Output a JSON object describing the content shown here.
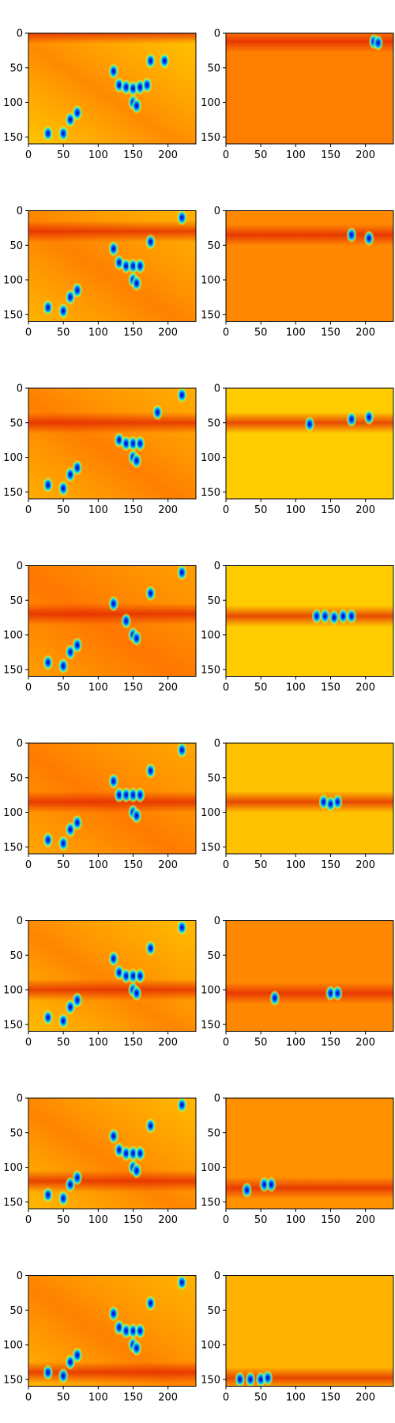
{
  "chart_data": {
    "type": "heatmap",
    "layout": "8 rows x 2 columns of image panels",
    "colormap": "jet",
    "x_ticks": [
      0,
      50,
      100,
      150,
      200
    ],
    "y_ticks": [
      0,
      50,
      100,
      150
    ],
    "xlim": [
      0,
      240
    ],
    "ylim": [
      160,
      0
    ],
    "panels": [
      {
        "row": 1,
        "col": 1,
        "background": "#ffc400",
        "focus_y": 0,
        "blobs": [
          [
            28,
            145
          ],
          [
            50,
            145
          ],
          [
            60,
            125
          ],
          [
            70,
            115
          ],
          [
            122,
            55
          ],
          [
            130,
            75
          ],
          [
            140,
            78
          ],
          [
            150,
            80
          ],
          [
            160,
            78
          ],
          [
            170,
            75
          ],
          [
            150,
            100
          ],
          [
            155,
            105
          ],
          [
            175,
            40
          ],
          [
            195,
            40
          ]
        ]
      },
      {
        "row": 1,
        "col": 2,
        "background": "#ff7f00",
        "focus_y": 12,
        "blobs": [
          [
            212,
            12
          ],
          [
            218,
            14
          ]
        ]
      },
      {
        "row": 2,
        "col": 1,
        "background": "#ffb300",
        "focus_y": 30,
        "blobs": [
          [
            28,
            140
          ],
          [
            50,
            145
          ],
          [
            60,
            125
          ],
          [
            70,
            115
          ],
          [
            122,
            55
          ],
          [
            130,
            75
          ],
          [
            140,
            80
          ],
          [
            150,
            80
          ],
          [
            160,
            80
          ],
          [
            150,
            100
          ],
          [
            155,
            105
          ],
          [
            175,
            45
          ],
          [
            220,
            10
          ]
        ]
      },
      {
        "row": 2,
        "col": 2,
        "background": "#ff8800",
        "focus_y": 35,
        "blobs": [
          [
            180,
            35
          ],
          [
            205,
            40
          ]
        ]
      },
      {
        "row": 3,
        "col": 1,
        "background": "#ffae00",
        "focus_y": 50,
        "blobs": [
          [
            28,
            140
          ],
          [
            50,
            145
          ],
          [
            60,
            125
          ],
          [
            70,
            115
          ],
          [
            130,
            75
          ],
          [
            140,
            80
          ],
          [
            150,
            80
          ],
          [
            160,
            80
          ],
          [
            150,
            100
          ],
          [
            155,
            105
          ],
          [
            185,
            35
          ],
          [
            220,
            10
          ]
        ]
      },
      {
        "row": 3,
        "col": 2,
        "background": "#ffcc00",
        "focus_y": 50,
        "blobs": [
          [
            120,
            52
          ],
          [
            180,
            45
          ],
          [
            205,
            42
          ]
        ]
      },
      {
        "row": 4,
        "col": 1,
        "background": "#ff9d00",
        "focus_y": 70,
        "blobs": [
          [
            28,
            140
          ],
          [
            50,
            145
          ],
          [
            60,
            125
          ],
          [
            70,
            115
          ],
          [
            122,
            55
          ],
          [
            140,
            80
          ],
          [
            150,
            100
          ],
          [
            155,
            105
          ],
          [
            175,
            40
          ],
          [
            220,
            10
          ]
        ]
      },
      {
        "row": 4,
        "col": 2,
        "background": "#ffcc00",
        "focus_y": 73,
        "blobs": [
          [
            130,
            73
          ],
          [
            142,
            73
          ],
          [
            155,
            75
          ],
          [
            168,
            73
          ],
          [
            180,
            73
          ]
        ]
      },
      {
        "row": 5,
        "col": 1,
        "background": "#ffa600",
        "focus_y": 85,
        "blobs": [
          [
            28,
            140
          ],
          [
            50,
            145
          ],
          [
            60,
            125
          ],
          [
            70,
            115
          ],
          [
            122,
            55
          ],
          [
            130,
            75
          ],
          [
            140,
            75
          ],
          [
            150,
            75
          ],
          [
            160,
            75
          ],
          [
            150,
            100
          ],
          [
            155,
            105
          ],
          [
            175,
            40
          ],
          [
            220,
            10
          ]
        ]
      },
      {
        "row": 5,
        "col": 2,
        "background": "#ffc200",
        "focus_y": 85,
        "blobs": [
          [
            140,
            85
          ],
          [
            150,
            88
          ],
          [
            160,
            85
          ]
        ]
      },
      {
        "row": 6,
        "col": 1,
        "background": "#ffbb00",
        "focus_y": 100,
        "blobs": [
          [
            28,
            140
          ],
          [
            50,
            145
          ],
          [
            60,
            125
          ],
          [
            70,
            115
          ],
          [
            122,
            55
          ],
          [
            130,
            75
          ],
          [
            140,
            80
          ],
          [
            150,
            80
          ],
          [
            160,
            80
          ],
          [
            150,
            100
          ],
          [
            155,
            105
          ],
          [
            175,
            40
          ],
          [
            220,
            10
          ]
        ]
      },
      {
        "row": 6,
        "col": 2,
        "background": "#ff8800",
        "focus_y": 105,
        "blobs": [
          [
            70,
            112
          ],
          [
            150,
            105
          ],
          [
            160,
            105
          ]
        ]
      },
      {
        "row": 7,
        "col": 1,
        "background": "#ffb800",
        "focus_y": 120,
        "blobs": [
          [
            28,
            140
          ],
          [
            50,
            145
          ],
          [
            60,
            125
          ],
          [
            70,
            115
          ],
          [
            122,
            55
          ],
          [
            130,
            75
          ],
          [
            140,
            80
          ],
          [
            150,
            80
          ],
          [
            160,
            80
          ],
          [
            150,
            100
          ],
          [
            155,
            105
          ],
          [
            175,
            40
          ],
          [
            220,
            10
          ]
        ]
      },
      {
        "row": 7,
        "col": 2,
        "background": "#ff9000",
        "focus_y": 130,
        "blobs": [
          [
            30,
            133
          ],
          [
            55,
            125
          ],
          [
            65,
            125
          ]
        ]
      },
      {
        "row": 8,
        "col": 1,
        "background": "#ffb300",
        "focus_y": 140,
        "blobs": [
          [
            28,
            140
          ],
          [
            50,
            145
          ],
          [
            60,
            125
          ],
          [
            70,
            115
          ],
          [
            122,
            55
          ],
          [
            130,
            75
          ],
          [
            140,
            80
          ],
          [
            150,
            80
          ],
          [
            160,
            80
          ],
          [
            150,
            100
          ],
          [
            155,
            105
          ],
          [
            175,
            40
          ],
          [
            220,
            10
          ]
        ]
      },
      {
        "row": 8,
        "col": 2,
        "background": "#ffb300",
        "focus_y": 148,
        "blobs": [
          [
            20,
            150
          ],
          [
            35,
            150
          ],
          [
            50,
            150
          ],
          [
            60,
            148
          ]
        ]
      }
    ]
  }
}
